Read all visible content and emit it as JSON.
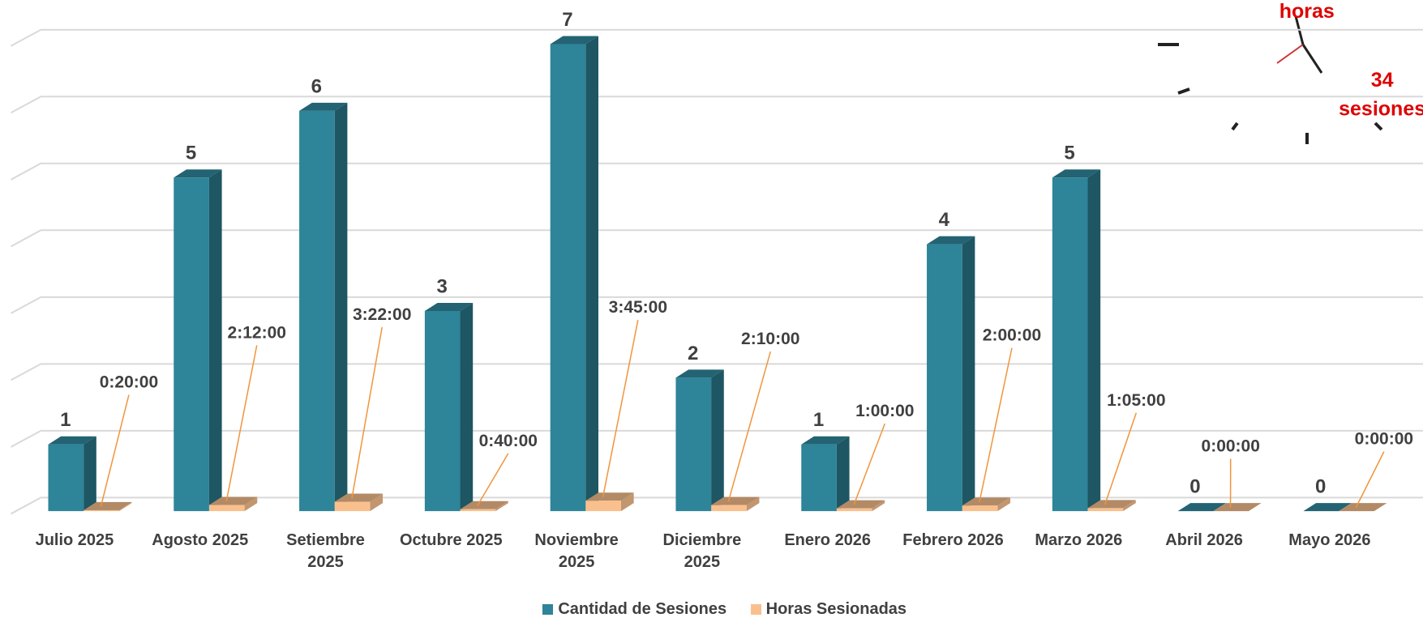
{
  "chart_data": {
    "type": "bar3d",
    "categories": [
      "Julio 2025",
      "Agosto 2025",
      "Setiembre 2025",
      "Octubre 2025",
      "Noviembre 2025",
      "Diciembre 2025",
      "Enero 2026",
      "Febrero 2026",
      "Marzo 2026",
      "Abril 2026",
      "Mayo 2026"
    ],
    "series": [
      {
        "name": "Cantidad de Sesiones",
        "color": "#2e8499",
        "values": [
          1,
          5,
          6,
          3,
          7,
          2,
          1,
          4,
          5,
          0,
          0
        ]
      },
      {
        "name": "Horas Sesionadas",
        "color": "#f9c08e",
        "values": [
          0.013889,
          0.091667,
          0.140278,
          0.027778,
          0.15625,
          0.090278,
          0.041667,
          0.083333,
          0.045139,
          0,
          0
        ],
        "value_labels": [
          "0:20:00",
          "2:12:00",
          "3:22:00",
          "0:40:00",
          "3:45:00",
          "2:10:00",
          "1:00:00",
          "2:00:00",
          "1:05:00",
          "0:00:00",
          "0:00:00"
        ]
      }
    ],
    "ylim": [
      0,
      7
    ],
    "yticks": [
      0,
      1,
      2,
      3,
      4,
      5,
      6,
      7
    ],
    "grid": true,
    "legend": "bottom",
    "annotations": [
      "horas",
      "34",
      "sesiones"
    ]
  }
}
